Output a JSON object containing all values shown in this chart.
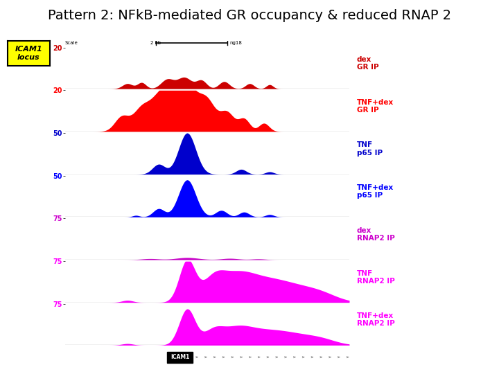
{
  "title": "Pattern 2: NFkB-mediated GR occupancy & reduced RNAP 2",
  "title_fontsize": 14,
  "icam1_label": "ICAM1\nlocus",
  "icam1_bg": "#FFFF00",
  "tracks": [
    {
      "label_line1": "dex",
      "label_line2": "GR IP",
      "color": "#cc0000",
      "ymax": 20,
      "type": "dex_GR"
    },
    {
      "label_line1": "TNF+dex",
      "label_line2": "GR IP",
      "color": "#ff0000",
      "ymax": 20,
      "type": "tnfdex_GR"
    },
    {
      "label_line1": "TNF",
      "label_line2": "p65 IP",
      "color": "#0000cc",
      "ymax": 50,
      "type": "tnf_p65"
    },
    {
      "label_line1": "TNF+dex",
      "label_line2": "p65 IP",
      "color": "#0000ff",
      "ymax": 50,
      "type": "tnfdex_p65"
    },
    {
      "label_line1": "dex",
      "label_line2": "RNAP2 IP",
      "color": "#cc00cc",
      "ymax": 75,
      "type": "dex_RNAP2"
    },
    {
      "label_line1": "TNF",
      "label_line2": "RNAP2 IP",
      "color": "#ff00ff",
      "ymax": 75,
      "type": "tnf_RNAP2"
    },
    {
      "label_line1": "TNF+dex",
      "label_line2": "RNAP2 IP",
      "color": "#ff00ff",
      "ymax": 75,
      "type": "tnfdex_RNAP2"
    }
  ],
  "background_color": "#ffffff"
}
